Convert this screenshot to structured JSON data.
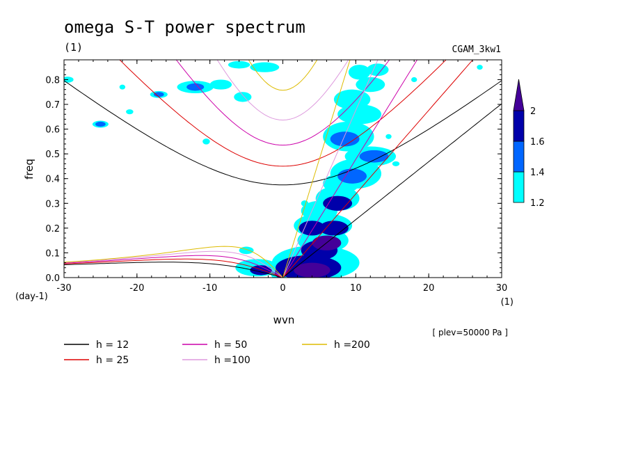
{
  "chart_data": {
    "type": "contour",
    "title": "omega S-T power spectrum",
    "subtitle": "(1)",
    "dataset_label": "CGAM_3kw1",
    "xlabel": "wvn",
    "ylabel": "freq",
    "x_unit": "(1)",
    "y_unit": "(day-1)",
    "level_note": "[ plev=50000 Pa ]",
    "xlim": [
      -30,
      30
    ],
    "ylim": [
      0,
      0.88
    ],
    "x_ticks": [
      -30,
      -20,
      -10,
      0,
      10,
      20,
      30
    ],
    "y_ticks": [
      0.0,
      0.1,
      0.2,
      0.3,
      0.4,
      0.5,
      0.6,
      0.7,
      0.8
    ],
    "x_tick_labels": [
      "-30",
      "-20",
      "-10",
      "0",
      "10",
      "20",
      "30"
    ],
    "y_tick_labels": [
      "0.0",
      "0.1",
      "0.2",
      "0.3",
      "0.4",
      "0.5",
      "0.6",
      "0.7",
      "0.8"
    ],
    "colorbar": {
      "levels": [
        1.2,
        1.4,
        1.6,
        2
      ],
      "labels": [
        "1.2",
        "1.4",
        "1.6",
        "2"
      ],
      "colors": [
        "#00ffff",
        "#0066ff",
        "#0000aa",
        "#440099"
      ]
    },
    "dispersion_curves": {
      "colors": {
        "12": "#000000",
        "25": "#dd0000",
        "50": "#cc00aa",
        "100": "#dd99dd",
        "200": "#ddbb00"
      },
      "legend": [
        {
          "h": 12,
          "label": "h = 12",
          "color": "#000000"
        },
        {
          "h": 25,
          "label": "h = 25",
          "color": "#dd0000"
        },
        {
          "h": 50,
          "label": "h = 50",
          "color": "#cc00aa"
        },
        {
          "h": 100,
          "label": "h =100",
          "color": "#dd99dd"
        },
        {
          "h": 200,
          "label": "h =200",
          "color": "#ddbb00"
        }
      ]
    },
    "power_blobs": [
      {
        "x": 4,
        "y": 0.03,
        "rx": 2.5,
        "ry": 0.03,
        "level": 4
      },
      {
        "x": 3.5,
        "y": 0.04,
        "rx": 4.5,
        "ry": 0.05,
        "level": 3
      },
      {
        "x": 4.5,
        "y": 0.06,
        "rx": 6,
        "ry": 0.07,
        "level": 1
      },
      {
        "x": 5,
        "y": 0.11,
        "rx": 2.5,
        "ry": 0.04,
        "level": 3
      },
      {
        "x": 6,
        "y": 0.14,
        "rx": 2,
        "ry": 0.03,
        "level": 4
      },
      {
        "x": 5.5,
        "y": 0.15,
        "rx": 3.5,
        "ry": 0.05,
        "level": 1
      },
      {
        "x": 4,
        "y": 0.2,
        "rx": 1.8,
        "ry": 0.03,
        "level": 3
      },
      {
        "x": 7,
        "y": 0.2,
        "rx": 2,
        "ry": 0.03,
        "level": 3
      },
      {
        "x": 5.5,
        "y": 0.21,
        "rx": 4,
        "ry": 0.05,
        "level": 1
      },
      {
        "x": 5,
        "y": 0.27,
        "rx": 2.5,
        "ry": 0.04,
        "level": 1
      },
      {
        "x": 7.5,
        "y": 0.3,
        "rx": 2,
        "ry": 0.03,
        "level": 3
      },
      {
        "x": 7.5,
        "y": 0.32,
        "rx": 3,
        "ry": 0.05,
        "level": 1
      },
      {
        "x": 8,
        "y": 0.38,
        "rx": 2.5,
        "ry": 0.04,
        "level": 1
      },
      {
        "x": 9.5,
        "y": 0.41,
        "rx": 2,
        "ry": 0.03,
        "level": 2
      },
      {
        "x": 10,
        "y": 0.42,
        "rx": 3.5,
        "ry": 0.06,
        "level": 1
      },
      {
        "x": 12.5,
        "y": 0.49,
        "rx": 2,
        "ry": 0.025,
        "level": 2
      },
      {
        "x": 12,
        "y": 0.49,
        "rx": 3.5,
        "ry": 0.04,
        "level": 1
      },
      {
        "x": 8.5,
        "y": 0.56,
        "rx": 2,
        "ry": 0.03,
        "level": 2
      },
      {
        "x": 9,
        "y": 0.57,
        "rx": 3.5,
        "ry": 0.06,
        "level": 1
      },
      {
        "x": 10.5,
        "y": 0.66,
        "rx": 3,
        "ry": 0.04,
        "level": 1
      },
      {
        "x": 9.5,
        "y": 0.72,
        "rx": 2.5,
        "ry": 0.04,
        "level": 1
      },
      {
        "x": 12,
        "y": 0.78,
        "rx": 2,
        "ry": 0.03,
        "level": 1
      },
      {
        "x": 10.5,
        "y": 0.83,
        "rx": 1.5,
        "ry": 0.03,
        "level": 1
      },
      {
        "x": 13,
        "y": 0.84,
        "rx": 1.5,
        "ry": 0.025,
        "level": 1
      },
      {
        "x": -3,
        "y": 0.03,
        "rx": 1.5,
        "ry": 0.02,
        "level": 3
      },
      {
        "x": -3.5,
        "y": 0.04,
        "rx": 3,
        "ry": 0.035,
        "level": 1
      },
      {
        "x": -0.5,
        "y": 0.02,
        "rx": 0.6,
        "ry": 0.02,
        "level": 3
      },
      {
        "x": -0.5,
        "y": 0.02,
        "rx": 1.2,
        "ry": 0.03,
        "level": 1
      },
      {
        "x": -5,
        "y": 0.11,
        "rx": 1,
        "ry": 0.015,
        "level": 1
      },
      {
        "x": -12,
        "y": 0.77,
        "rx": 1.2,
        "ry": 0.015,
        "level": 2
      },
      {
        "x": -12,
        "y": 0.77,
        "rx": 2.5,
        "ry": 0.025,
        "level": 1
      },
      {
        "x": -8.5,
        "y": 0.78,
        "rx": 1.5,
        "ry": 0.02,
        "level": 1
      },
      {
        "x": -5.5,
        "y": 0.73,
        "rx": 1.2,
        "ry": 0.02,
        "level": 1
      },
      {
        "x": -6,
        "y": 0.86,
        "rx": 1.5,
        "ry": 0.015,
        "level": 1
      },
      {
        "x": -2.5,
        "y": 0.85,
        "rx": 2,
        "ry": 0.02,
        "level": 1
      },
      {
        "x": -17,
        "y": 0.74,
        "rx": 0.7,
        "ry": 0.01,
        "level": 2
      },
      {
        "x": -17,
        "y": 0.74,
        "rx": 1.2,
        "ry": 0.014,
        "level": 1
      },
      {
        "x": -25,
        "y": 0.62,
        "rx": 0.7,
        "ry": 0.01,
        "level": 2
      },
      {
        "x": -25,
        "y": 0.62,
        "rx": 1.1,
        "ry": 0.014,
        "level": 1
      },
      {
        "x": -29.5,
        "y": 0.8,
        "rx": 0.8,
        "ry": 0.012,
        "level": 1
      },
      {
        "x": -22,
        "y": 0.77,
        "rx": 0.4,
        "ry": 0.01,
        "level": 1
      },
      {
        "x": -21,
        "y": 0.67,
        "rx": 0.5,
        "ry": 0.01,
        "level": 1
      },
      {
        "x": -10.5,
        "y": 0.55,
        "rx": 0.5,
        "ry": 0.012,
        "level": 1
      },
      {
        "x": 3,
        "y": 0.3,
        "rx": 0.5,
        "ry": 0.012,
        "level": 1
      },
      {
        "x": 15.5,
        "y": 0.46,
        "rx": 0.5,
        "ry": 0.01,
        "level": 1
      },
      {
        "x": 14.5,
        "y": 0.57,
        "rx": 0.4,
        "ry": 0.01,
        "level": 1
      },
      {
        "x": 18,
        "y": 0.8,
        "rx": 0.4,
        "ry": 0.01,
        "level": 1
      },
      {
        "x": 27,
        "y": 0.85,
        "rx": 0.4,
        "ry": 0.01,
        "level": 1
      }
    ]
  }
}
